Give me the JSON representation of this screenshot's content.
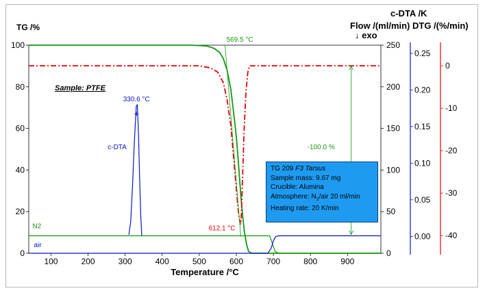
{
  "chart_data": {
    "type": "line",
    "title": "",
    "xlabel": "Temperature /°C",
    "xlim": [
      40,
      990
    ],
    "x_ticks": [
      100,
      200,
      300,
      400,
      500,
      600,
      700,
      800,
      900
    ],
    "axes": {
      "tg": {
        "label": "TG /%",
        "lim": [
          0,
          100
        ],
        "ticks": [
          0,
          20,
          40,
          60,
          80,
          100
        ],
        "color": "#000000"
      },
      "flow": {
        "label": "Flow /(ml/min)",
        "lim": [
          0,
          250
        ],
        "ticks": [
          0,
          50,
          100,
          150,
          200,
          250
        ],
        "color": "#000000"
      },
      "cdta": {
        "label": "c-DTA /K",
        "arrow_label": "↓ exo",
        "lim": [
          -0.025,
          0.265
        ],
        "ticks": [
          "0.00",
          "0.05",
          "0.10",
          "0.15",
          "0.20",
          "0.25"
        ],
        "color": "#0a14c8"
      },
      "dtg": {
        "label": "DTG /(%/min)",
        "lim": [
          -44.5,
          5.5
        ],
        "ticks": [
          0,
          -10,
          -20,
          -30,
          -40
        ],
        "color": "#e60000"
      }
    },
    "series": [
      {
        "name": "TG",
        "axis": "tg",
        "color": "#149614",
        "style": "solid",
        "points": [
          [
            40,
            100
          ],
          [
            480,
            100
          ],
          [
            520,
            99.6
          ],
          [
            540,
            98.5
          ],
          [
            555,
            96.5
          ],
          [
            565,
            93.5
          ],
          [
            575,
            88
          ],
          [
            585,
            79
          ],
          [
            595,
            64
          ],
          [
            600,
            56
          ],
          [
            605,
            45
          ],
          [
            610,
            33
          ],
          [
            613,
            26
          ],
          [
            617,
            18
          ],
          [
            622,
            10
          ],
          [
            628,
            4
          ],
          [
            633,
            1
          ],
          [
            638,
            0.3
          ],
          [
            642,
            0
          ],
          [
            990,
            0
          ]
        ]
      },
      {
        "name": "DTG",
        "axis": "dtg",
        "color": "#e60000",
        "style": "dashdot",
        "points": [
          [
            40,
            0
          ],
          [
            500,
            0
          ],
          [
            530,
            -0.5
          ],
          [
            550,
            -1.5
          ],
          [
            565,
            -4
          ],
          [
            575,
            -8
          ],
          [
            585,
            -14
          ],
          [
            595,
            -24
          ],
          [
            603,
            -32
          ],
          [
            607,
            -35.5
          ],
          [
            611,
            -37.3
          ],
          [
            613,
            -36.5
          ],
          [
            617,
            -26
          ],
          [
            621,
            -15
          ],
          [
            626,
            -6
          ],
          [
            631,
            -1.5
          ],
          [
            636,
            0
          ],
          [
            990,
            0
          ]
        ]
      },
      {
        "name": "c-DTA",
        "axis": "cdta",
        "color": "#0a14c8",
        "style": "solid",
        "points": [
          [
            310,
            0.002
          ],
          [
            315,
            0.02
          ],
          [
            320,
            0.07
          ],
          [
            325,
            0.13
          ],
          [
            330,
            0.178
          ],
          [
            333,
            0.18
          ],
          [
            336,
            0.14
          ],
          [
            339,
            0.08
          ],
          [
            342,
            0.03
          ],
          [
            345,
            0.0
          ]
        ]
      },
      {
        "name": "N2",
        "axis": "flow",
        "color": "#149614",
        "style": "solid",
        "points": [
          [
            40,
            21
          ],
          [
            690,
            21
          ],
          [
            697,
            12
          ],
          [
            705,
            2
          ],
          [
            715,
            0
          ],
          [
            990,
            0
          ]
        ]
      },
      {
        "name": "air",
        "axis": "flow",
        "color": "#0a14c8",
        "style": "solid",
        "points": [
          [
            40,
            0
          ],
          [
            685,
            0
          ],
          [
            694,
            6
          ],
          [
            700,
            15
          ],
          [
            706,
            20
          ],
          [
            714,
            21
          ],
          [
            990,
            21
          ]
        ]
      }
    ],
    "annotations": [
      {
        "text": "569.5 °C",
        "axis": "tg",
        "x": 569.5,
        "y": 100,
        "color": "#149614"
      },
      {
        "text": "330.6 °C",
        "axis": "tg",
        "x": 330.6,
        "y": 70,
        "color": "#0a14c8"
      },
      {
        "text": "612.1 °C",
        "axis": "tg",
        "x": 612.1,
        "y": 11,
        "color": "#e60000"
      },
      {
        "text": "-100.0 %",
        "axis": "tg",
        "x": 910,
        "y": 50,
        "color": "#149614"
      },
      {
        "text": "c-DTA",
        "axis": "tg",
        "x": 290,
        "y": 50,
        "color": "#0a14c8"
      },
      {
        "text": "N2",
        "axis": "tg",
        "x": 50,
        "y": 12,
        "color": "#149614"
      },
      {
        "text": "air",
        "axis": "tg",
        "x": 50,
        "y": 3,
        "color": "#0a14c8"
      }
    ],
    "sample_label": "Sample: PTFE",
    "info": {
      "instrument": "TG 209",
      "instrument_model": "F3 Tarsus",
      "sample_mass": "Sample mass: 9.67 mg",
      "crucible": "Crucible: Alumina",
      "atmosphere": "Atmosphere: N",
      "atmosphere_sub": "2",
      "atmosphere_rest": "/air 20 ml/min",
      "heating_rate": "Heating rate: 20 K/min"
    }
  }
}
